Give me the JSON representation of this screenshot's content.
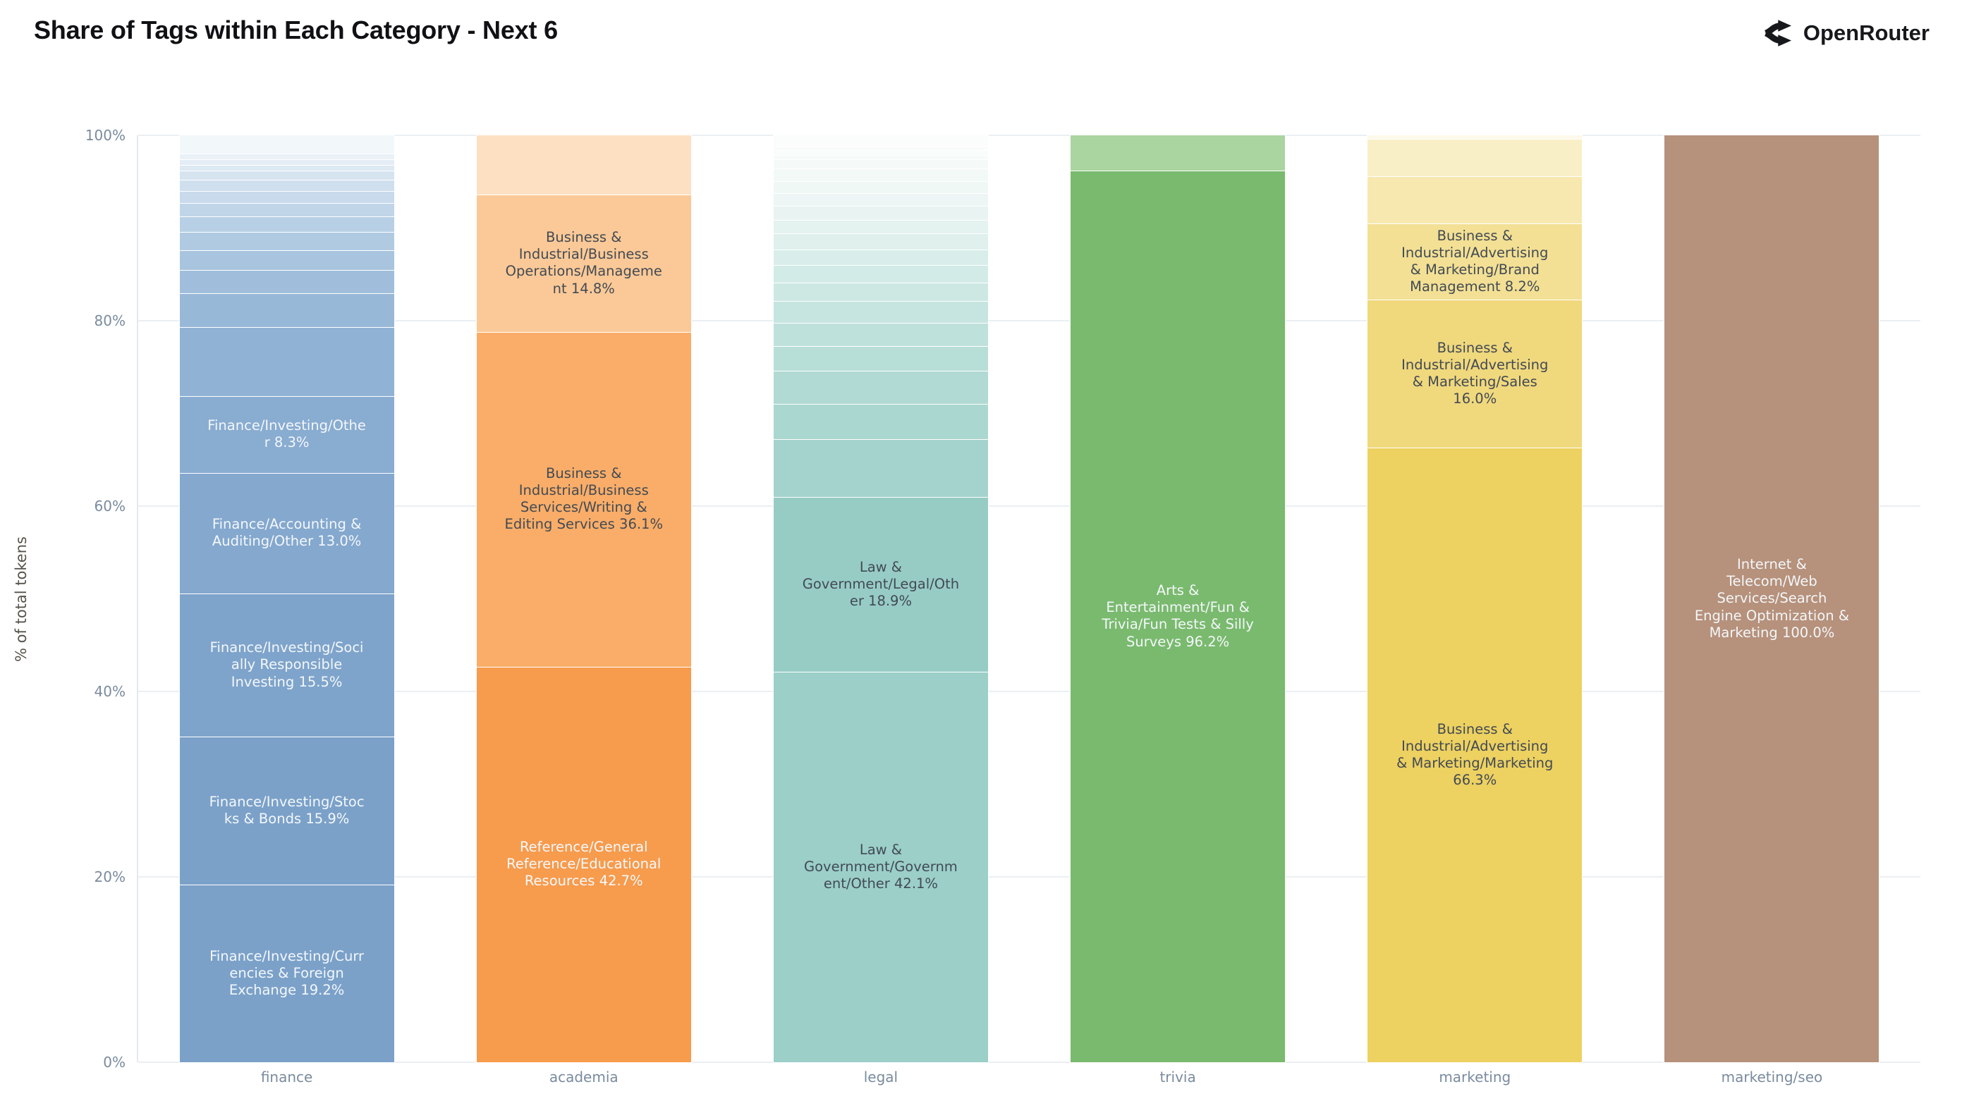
{
  "page": {
    "title": "Share of Tags within Each Category - Next 6"
  },
  "brand": {
    "name": "OpenRouter",
    "icon": "openrouter-branch-arrows-icon",
    "color": "#16181b"
  },
  "colors": {
    "background": "#ffffff",
    "grid": "#eaeff3",
    "axis_line": "#e3e9ee",
    "tick_text": "#7a8b9e",
    "axis_title_text": "#57534c",
    "title_text": "#0f1114",
    "light_label_text": "#f3f7fa",
    "dark_label_text": "#424a54"
  },
  "chart_data": {
    "type": "bar",
    "stacked": true,
    "units": "percent_of_total_tokens",
    "title": "Share of Tags within Each Category - Next 6",
    "xlabel": "",
    "ylabel": "% of total tokens",
    "ylim": [
      0,
      100
    ],
    "grid": true,
    "legend": false,
    "yticks": [
      0,
      20,
      40,
      60,
      80,
      100
    ],
    "ytick_labels": [
      "0%",
      "20%",
      "40%",
      "60%",
      "80%",
      "100%"
    ],
    "categories": [
      "finance",
      "academia",
      "legal",
      "trivia",
      "marketing",
      "marketing/seo"
    ],
    "bars": [
      {
        "category": "finance",
        "segments": [
          {
            "tag": "Finance/Investing/Currencies & Foreign Exchange",
            "value": 19.2,
            "labeled": true,
            "color": "#7ba1c9",
            "text_color": "#f3f7fa"
          },
          {
            "tag": "Finance/Investing/Stocks & Bonds",
            "value": 15.9,
            "labeled": true,
            "color": "#7ba1c9",
            "text_color": "#f3f7fa"
          },
          {
            "tag": "Finance/Investing/Socially Responsible Investing",
            "value": 15.5,
            "labeled": true,
            "color": "#7fa4cb",
            "text_color": "#f3f7fa"
          },
          {
            "tag": "Finance/Accounting & Auditing/Other",
            "value": 13.0,
            "labeled": true,
            "color": "#84a8ce",
            "text_color": "#f3f7fa"
          },
          {
            "tag": "Finance/Investing/Other",
            "value": 8.3,
            "labeled": true,
            "color": "#89acd1",
            "text_color": "#f3f7fa"
          },
          {
            "tag": "",
            "value": 7.4,
            "labeled": false,
            "color": "#90b2d4",
            "text_color": "#f3f7fa"
          },
          {
            "tag": "",
            "value": 3.7,
            "labeled": false,
            "color": "#98b8d8",
            "text_color": "#f3f7fa"
          },
          {
            "tag": "",
            "value": 2.5,
            "labeled": false,
            "color": "#a0bedb",
            "text_color": "#f3f7fa"
          },
          {
            "tag": "",
            "value": 2.1,
            "labeled": false,
            "color": "#a8c4de",
            "text_color": "#f3f7fa"
          },
          {
            "tag": "",
            "value": 2.0,
            "labeled": false,
            "color": "#b0cae2",
            "text_color": "#f3f7fa"
          },
          {
            "tag": "",
            "value": 1.7,
            "labeled": false,
            "color": "#b8d0e5",
            "text_color": "#f3f7fa"
          },
          {
            "tag": "",
            "value": 1.4,
            "labeled": false,
            "color": "#c0d5e8",
            "text_color": "#f3f7fa"
          },
          {
            "tag": "",
            "value": 1.3,
            "labeled": false,
            "color": "#c8daeb",
            "text_color": "#f3f7fa"
          },
          {
            "tag": "",
            "value": 1.2,
            "labeled": false,
            "color": "#cfdfee",
            "text_color": "#f3f7fa"
          },
          {
            "tag": "",
            "value": 1.0,
            "labeled": false,
            "color": "#d6e4f0",
            "text_color": "#f3f7fa"
          },
          {
            "tag": "",
            "value": 0.6,
            "labeled": false,
            "color": "#dde9f3",
            "text_color": "#f3f7fa"
          },
          {
            "tag": "",
            "value": 0.6,
            "labeled": false,
            "color": "#e4edf5",
            "text_color": "#f3f7fa"
          },
          {
            "tag": "",
            "value": 0.6,
            "labeled": false,
            "color": "#eaf1f7",
            "text_color": "#f3f7fa"
          },
          {
            "tag": "",
            "value": 2.0,
            "labeled": false,
            "color": "#f2f7fa",
            "text_color": "#f3f7fa"
          }
        ]
      },
      {
        "category": "academia",
        "segments": [
          {
            "tag": "Reference/General Reference/Educational Resources",
            "value": 42.7,
            "labeled": true,
            "color": "#f79b4d",
            "text_color": "#f6f9fb"
          },
          {
            "tag": "Business & Industrial/Business Services/Writing & Editing Services",
            "value": 36.1,
            "labeled": true,
            "color": "#f9ad68",
            "text_color": "#424a54"
          },
          {
            "tag": "Business & Industrial/Business Operations/Management",
            "value": 14.8,
            "labeled": true,
            "color": "#fbc997",
            "text_color": "#424a54"
          },
          {
            "tag": "",
            "value": 6.4,
            "labeled": false,
            "color": "#fde0c2",
            "text_color": "#424a54"
          }
        ]
      },
      {
        "category": "legal",
        "segments": [
          {
            "tag": "Law & Government/Government/Other",
            "value": 42.1,
            "labeled": true,
            "color": "#9bcfc8",
            "text_color": "#424a54"
          },
          {
            "tag": "Law & Government/Legal/Other",
            "value": 18.9,
            "labeled": true,
            "color": "#97ccc5",
            "text_color": "#424a54"
          },
          {
            "tag": "",
            "value": 6.2,
            "labeled": false,
            "color": "#a3d3cc",
            "text_color": "#424a54"
          },
          {
            "tag": "",
            "value": 3.8,
            "labeled": false,
            "color": "#aad7d0",
            "text_color": "#424a54"
          },
          {
            "tag": "",
            "value": 3.6,
            "labeled": false,
            "color": "#b1dad4",
            "text_color": "#424a54"
          },
          {
            "tag": "",
            "value": 2.7,
            "labeled": false,
            "color": "#b8ded8",
            "text_color": "#424a54"
          },
          {
            "tag": "",
            "value": 2.5,
            "labeled": false,
            "color": "#bfe1dc",
            "text_color": "#424a54"
          },
          {
            "tag": "",
            "value": 2.3,
            "labeled": false,
            "color": "#c6e4e0",
            "text_color": "#424a54"
          },
          {
            "tag": "",
            "value": 2.0,
            "labeled": false,
            "color": "#cde8e3",
            "text_color": "#424a54"
          },
          {
            "tag": "",
            "value": 1.9,
            "labeled": false,
            "color": "#d3ebe7",
            "text_color": "#424a54"
          },
          {
            "tag": "",
            "value": 1.7,
            "labeled": false,
            "color": "#d9eeea",
            "text_color": "#424a54"
          },
          {
            "tag": "",
            "value": 1.7,
            "labeled": false,
            "color": "#dff0ed",
            "text_color": "#424a54"
          },
          {
            "tag": "",
            "value": 1.5,
            "labeled": false,
            "color": "#e4f2f0",
            "text_color": "#424a54"
          },
          {
            "tag": "",
            "value": 1.5,
            "labeled": false,
            "color": "#e9f4f2",
            "text_color": "#424a54"
          },
          {
            "tag": "",
            "value": 1.4,
            "labeled": false,
            "color": "#edf6f4",
            "text_color": "#424a54"
          },
          {
            "tag": "",
            "value": 1.3,
            "labeled": false,
            "color": "#f0f8f6",
            "text_color": "#424a54"
          },
          {
            "tag": "",
            "value": 1.3,
            "labeled": false,
            "color": "#f3f9f7",
            "text_color": "#424a54"
          },
          {
            "tag": "",
            "value": 1.0,
            "labeled": false,
            "color": "#f5faf8",
            "text_color": "#424a54"
          },
          {
            "tag": "",
            "value": 0.5,
            "labeled": false,
            "color": "#f6fbf9",
            "text_color": "#424a54"
          },
          {
            "tag": "",
            "value": 0.5,
            "labeled": false,
            "color": "#f8fcfa",
            "text_color": "#424a54"
          },
          {
            "tag": "",
            "value": 0.5,
            "labeled": false,
            "color": "#fafcfb",
            "text_color": "#424a54"
          },
          {
            "tag": "",
            "value": 1.1,
            "labeled": false,
            "color": "#fbfdfc",
            "text_color": "#424a54"
          }
        ]
      },
      {
        "category": "trivia",
        "segments": [
          {
            "tag": "Arts & Entertainment/Fun & Trivia/Fun Tests & Silly Surveys",
            "value": 96.2,
            "labeled": true,
            "color": "#7aba6e",
            "text_color": "#f3f7fa"
          },
          {
            "tag": "",
            "value": 3.8,
            "labeled": false,
            "color": "#aad4a0",
            "text_color": "#f3f7fa"
          }
        ]
      },
      {
        "category": "marketing",
        "segments": [
          {
            "tag": "Business & Industrial/Advertising & Marketing/Marketing",
            "value": 66.3,
            "labeled": true,
            "color": "#edd161",
            "text_color": "#424a54"
          },
          {
            "tag": "Business & Industrial/Advertising & Marketing/Sales",
            "value": 16.0,
            "labeled": true,
            "color": "#f0d87d",
            "text_color": "#424a54"
          },
          {
            "tag": "Business & Industrial/Advertising & Marketing/Brand Management",
            "value": 8.2,
            "labeled": true,
            "color": "#f3e094",
            "text_color": "#424a54"
          },
          {
            "tag": "",
            "value": 5.1,
            "labeled": false,
            "color": "#f6e8af",
            "text_color": "#424a54"
          },
          {
            "tag": "",
            "value": 4.0,
            "labeled": false,
            "color": "#f9efc7",
            "text_color": "#424a54"
          },
          {
            "tag": "",
            "value": 0.4,
            "labeled": false,
            "color": "#fdf9ea",
            "text_color": "#424a54"
          }
        ]
      },
      {
        "category": "marketing/seo",
        "segments": [
          {
            "tag": "Internet & Telecom/Web Services/Search Engine Optimization & Marketing",
            "value": 100.0,
            "labeled": true,
            "color": "#b6917b",
            "text_color": "#f3f7fa"
          }
        ]
      }
    ]
  }
}
